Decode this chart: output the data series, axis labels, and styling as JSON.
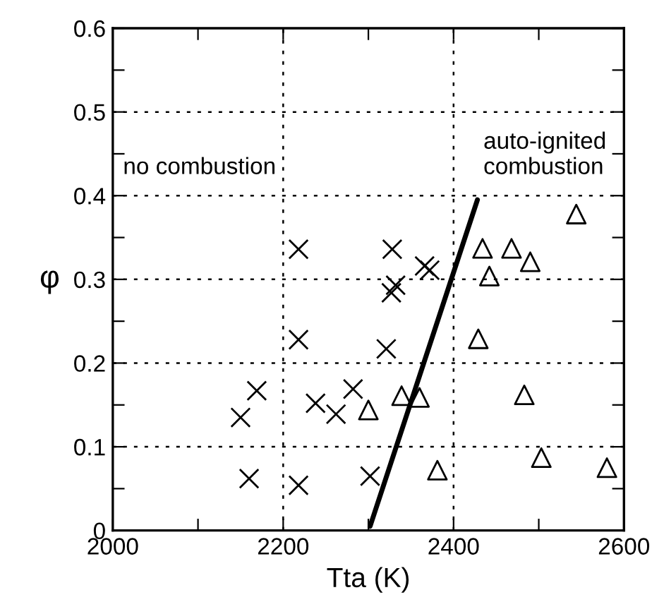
{
  "chart_data": {
    "type": "scatter",
    "xlabel": "Tta (K)",
    "ylabel": "φ",
    "xlim": [
      2000,
      2600
    ],
    "ylim": [
      0,
      0.6
    ],
    "xticks": [
      2000,
      {
        "value": 2100,
        "label": null
      },
      2200,
      {
        "value": 2300,
        "label": null
      },
      2400,
      {
        "value": 2500,
        "label": null
      },
      2600
    ],
    "yticks": [
      0,
      {
        "value": 0.05,
        "label": null
      },
      0.1,
      {
        "value": 0.15,
        "label": null
      },
      0.2,
      {
        "value": 0.25,
        "label": null
      },
      0.3,
      {
        "value": 0.35,
        "label": null
      },
      0.4,
      {
        "value": 0.45,
        "label": null
      },
      0.5,
      {
        "value": 0.55,
        "label": null
      },
      0.6
    ],
    "grid": true,
    "legend": false,
    "annotations": [
      "no combustion",
      "auto-ignited\ncombustion"
    ],
    "series": [
      {
        "marker": "cross",
        "color": "#000000",
        "x": [
          2150,
          2160,
          2169,
          2218,
          2218,
          2218,
          2238,
          2262,
          2282,
          2302,
          2321,
          2327,
          2328,
          2332,
          2366,
          2372
        ],
        "values": [
          0.135,
          0.062,
          0.167,
          0.336,
          0.228,
          0.054,
          0.152,
          0.139,
          0.169,
          0.065,
          0.217,
          0.284,
          0.336,
          0.293,
          0.316,
          0.311
        ]
      },
      {
        "marker": "triangle",
        "color": "#000000",
        "x": [
          2300,
          2339,
          2360,
          2381,
          2429,
          2434,
          2442,
          2468,
          2483,
          2490,
          2503,
          2544,
          2580
        ],
        "values": [
          0.144,
          0.161,
          0.159,
          0.072,
          0.229,
          0.337,
          0.304,
          0.337,
          0.162,
          0.321,
          0.087,
          0.378,
          0.075
        ]
      },
      {
        "type": "line",
        "marker": "none",
        "line_style": "solid",
        "color": "#000000",
        "x": [
          2302,
          2428
        ],
        "values": [
          0.005,
          0.395
        ]
      }
    ]
  }
}
